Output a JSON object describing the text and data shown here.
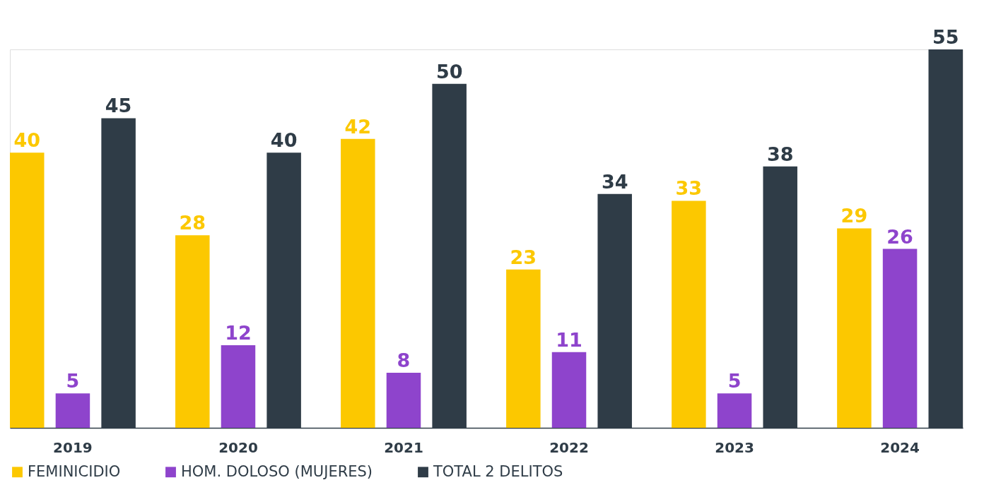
{
  "chart_data": {
    "type": "bar",
    "categories": [
      "2019",
      "2020",
      "2021",
      "2022",
      "2023",
      "2024"
    ],
    "series": [
      {
        "name": "FEMINICIDIO",
        "color": "#fcc800",
        "values": [
          40,
          28,
          42,
          23,
          33,
          29
        ]
      },
      {
        "name": "HOM. DOLOSO (MUJERES)",
        "color": "#8e44cc",
        "values": [
          5,
          12,
          8,
          11,
          5,
          26
        ]
      },
      {
        "name": "TOTAL 2 DELITOS",
        "color": "#2f3c47",
        "values": [
          45,
          40,
          50,
          34,
          38,
          55
        ]
      }
    ],
    "data_labels": true,
    "legend": "bottom",
    "grid": false,
    "tick_labels": "x"
  }
}
